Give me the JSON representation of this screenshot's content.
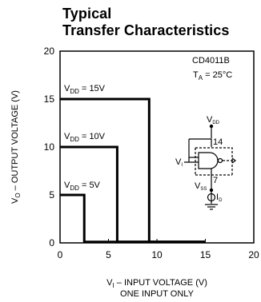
{
  "title_line1": "Typical",
  "title_line2": "Transfer Characteristics",
  "chart_data": {
    "type": "line",
    "xlabel_line1": "V",
    "xlabel_sub": "I",
    "xlabel_rest": " – INPUT VOLTAGE (V)",
    "xlabel_line2": "ONE INPUT ONLY",
    "ylabel_main": "V",
    "ylabel_sub": "O",
    "ylabel_rest": " – OUTPUT VOLTAGE (V)",
    "xlim": [
      0,
      20
    ],
    "ylim": [
      0,
      20
    ],
    "xticks": [
      "0",
      "5",
      "10",
      "15",
      "20"
    ],
    "yticks": [
      "0",
      "5",
      "10",
      "15",
      "20"
    ],
    "device_label": "CD4011B",
    "temp_label_main": "T",
    "temp_label_sub": "A",
    "temp_label_rest": " = 25°C",
    "series": [
      {
        "name": "VDD = 15V",
        "label_main": "V",
        "label_sub": "DD",
        "label_rest": " = 15V",
        "x": [
          0,
          9.2,
          9.2,
          15
        ],
        "y": [
          15,
          15,
          0.1,
          0.1
        ]
      },
      {
        "name": "VDD = 10V",
        "label_main": "V",
        "label_sub": "DD",
        "label_rest": " = 10V",
        "x": [
          0,
          5.9,
          5.9,
          15
        ],
        "y": [
          10,
          10,
          0.1,
          0.1
        ]
      },
      {
        "name": "VDD = 5V",
        "label_main": "V",
        "label_sub": "DD",
        "label_rest": " = 5V",
        "x": [
          0,
          2.5,
          2.5,
          15
        ],
        "y": [
          5,
          5,
          0.1,
          0.1
        ]
      }
    ],
    "inset": {
      "vdd_main": "V",
      "vdd_sub": "DD",
      "pin14": "14",
      "vi_main": "V",
      "vi_sub": "I",
      "vss_main": "V",
      "vss_sub": "SS",
      "pin7": "7",
      "id_main": "I",
      "id_sub": "D"
    }
  }
}
